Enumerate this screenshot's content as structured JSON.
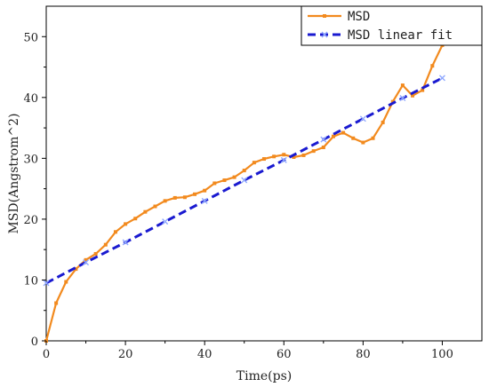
{
  "chart_data": {
    "type": "line",
    "xlabel": "Time(ps)",
    "ylabel": "MSD(Angstrom^2)",
    "xlim": [
      0,
      110
    ],
    "ylim": [
      0,
      55
    ],
    "x_ticks": [
      0,
      20,
      40,
      60,
      80,
      100
    ],
    "y_ticks": [
      0,
      10,
      20,
      30,
      40,
      50
    ],
    "grid": false,
    "legend_position": "top-right",
    "series": [
      {
        "name": "MSD",
        "color": "#f28a1e",
        "style": "line-with-square-markers",
        "x": [
          0,
          2.5,
          5,
          7.5,
          10,
          12.5,
          15,
          17.5,
          20,
          22.5,
          25,
          27.5,
          30,
          32.5,
          35,
          37.5,
          40,
          42.5,
          45,
          47.5,
          50,
          52.5,
          55,
          57.5,
          60,
          62.5,
          65,
          67.5,
          70,
          72.5,
          75,
          77.5,
          80,
          82.5,
          85,
          87.5,
          90,
          92.5,
          95,
          97.5,
          100
        ],
        "values": [
          0,
          6.2,
          9.7,
          11.8,
          13.3,
          14.3,
          15.8,
          17.9,
          19.2,
          20.1,
          21.2,
          22.1,
          23.0,
          23.5,
          23.6,
          24.1,
          24.7,
          25.9,
          26.4,
          26.9,
          28.0,
          29.3,
          29.9,
          30.3,
          30.6,
          30.2,
          30.5,
          31.2,
          31.8,
          33.6,
          34.2,
          33.3,
          32.6,
          33.3,
          35.9,
          39.3,
          42.0,
          40.3,
          41.2,
          45.2,
          48.6
        ]
      },
      {
        "name": "MSD linear fit",
        "color": "#1a1ad0",
        "style": "dashed-with-cross-markers",
        "x": [
          0,
          10,
          20,
          30,
          40,
          50,
          60,
          70,
          80,
          90,
          100
        ],
        "values": [
          9.5,
          12.9,
          16.2,
          19.6,
          23.0,
          26.4,
          29.7,
          33.1,
          36.5,
          39.9,
          43.2
        ]
      }
    ]
  }
}
